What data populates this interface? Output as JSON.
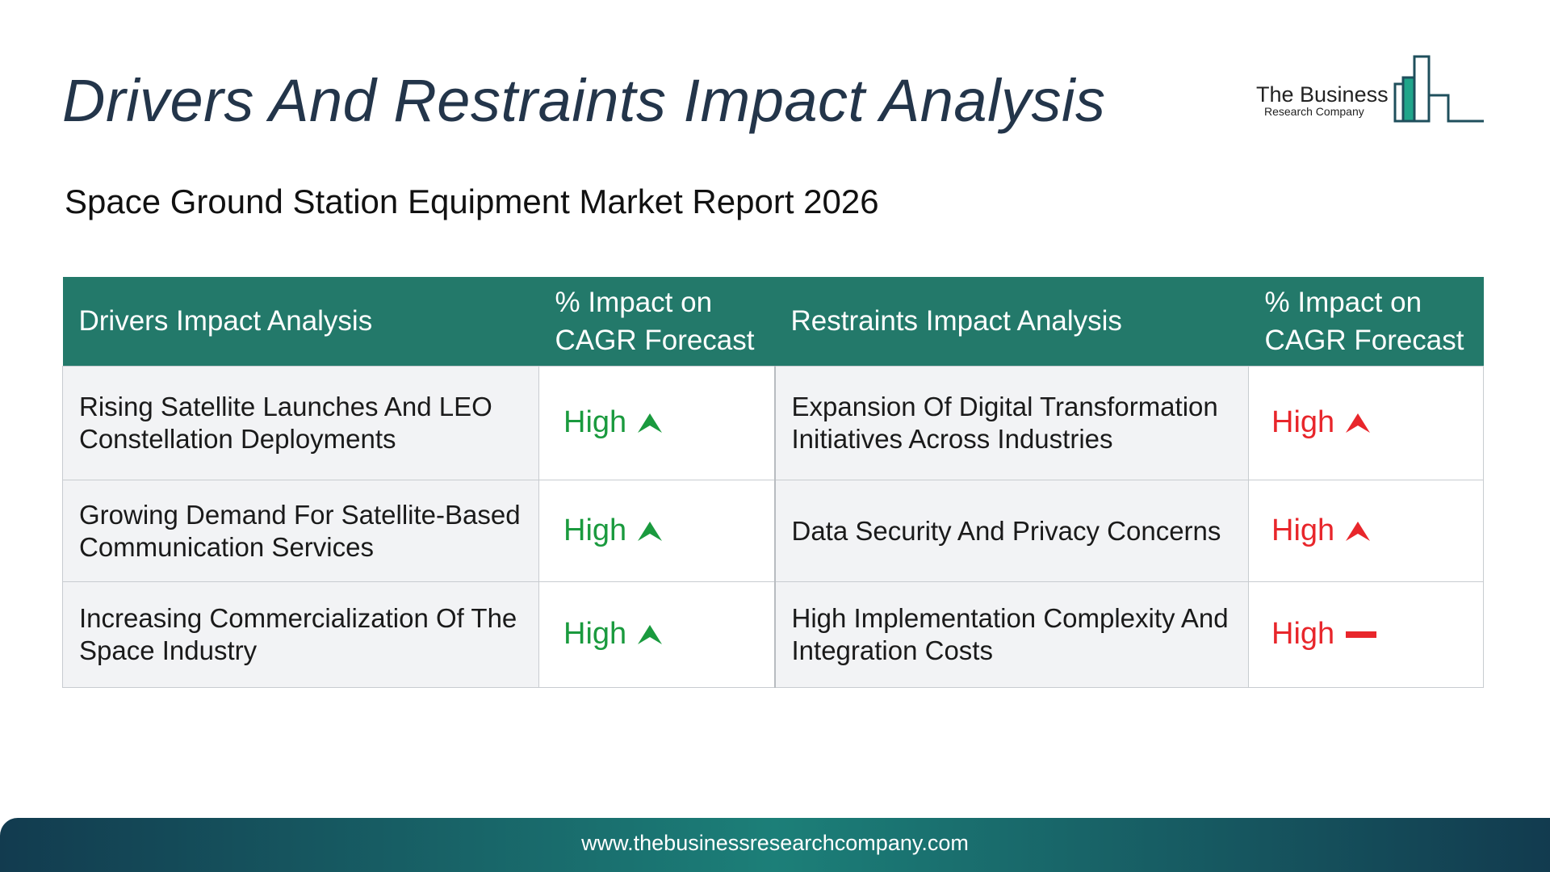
{
  "title": "Drivers And Restraints Impact Analysis",
  "subtitle": "Space Ground Station Equipment Market Report 2026",
  "logo": {
    "name": "The Business",
    "sub": "Research Company"
  },
  "table": {
    "headers": {
      "drivers": "Drivers Impact Analysis",
      "drivers_impact": "% Impact on CAGR Forecast",
      "restraints": "Restraints Impact Analysis",
      "restraints_impact": "% Impact on CAGR Forecast"
    },
    "rows": [
      {
        "driver": "Rising Satellite Launches And LEO Constellation Deployments",
        "driver_impact": "High",
        "driver_icon": "up-arrow-icon",
        "restraint": "Expansion Of Digital Transformation Initiatives Across Industries",
        "restraint_impact": "High",
        "restraint_icon": "up-arrow-icon"
      },
      {
        "driver": "Growing Demand For Satellite-Based Communication Services",
        "driver_impact": "High",
        "driver_icon": "up-arrow-icon",
        "restraint": "Data Security And Privacy Concerns",
        "restraint_impact": "High",
        "restraint_icon": "up-arrow-icon"
      },
      {
        "driver": "Increasing Commercialization Of The Space Industry",
        "driver_impact": "High",
        "driver_icon": "up-arrow-icon",
        "restraint": "High Implementation Complexity And Integration Costs",
        "restraint_impact": "High",
        "restraint_icon": "dash-icon"
      }
    ]
  },
  "colors": {
    "header_bg": "#23796a",
    "driver_impact": "#1a9a3e",
    "restraint_impact": "#e8262b",
    "title": "#23354a"
  },
  "footer": {
    "url": "www.thebusinessresearchcompany.com"
  }
}
